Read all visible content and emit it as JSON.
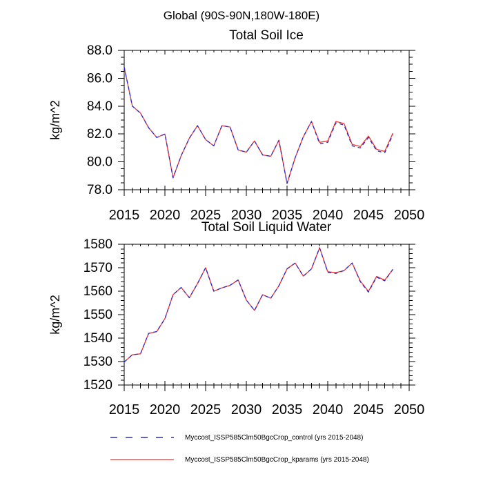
{
  "header": {
    "suptitle": "Global (90S-90N,180W-180E)"
  },
  "legend": {
    "entries": [
      {
        "label": "Myccost_ISSP585Clm50BgcCrop_control (yrs 2015-2048)",
        "color": "#2a2acc",
        "style": "dashed"
      },
      {
        "label": "Myccost_ISSP585Clm50BgcCrop_kparams (yrs 2015-2048)",
        "color": "#ee3333",
        "style": "solid"
      }
    ]
  },
  "chart_data": [
    {
      "type": "line",
      "title": "Total Soil Ice",
      "ylabel": "kg/m^2",
      "xlim": [
        2015,
        2050
      ],
      "ylim": [
        78,
        88
      ],
      "grid": false,
      "xtick_values": [
        2015,
        2020,
        2025,
        2030,
        2035,
        2040,
        2045,
        2050
      ],
      "xtick_labels": [
        "2015",
        "2020",
        "2025",
        "2030",
        "2035",
        "2040",
        "2045",
        "2050"
      ],
      "xtick_minor_step": 1,
      "ytick_values": [
        78,
        80,
        82,
        84,
        86,
        88
      ],
      "ytick_labels": [
        "78.0",
        "80.0",
        "82.0",
        "84.0",
        "86.0",
        "88.0"
      ],
      "ytick_minor_step": 0.5,
      "x": [
        2015,
        2016,
        2017,
        2018,
        2019,
        2020,
        2021,
        2022,
        2023,
        2024,
        2025,
        2026,
        2027,
        2028,
        2029,
        2030,
        2031,
        2032,
        2033,
        2034,
        2035,
        2036,
        2037,
        2038,
        2039,
        2040,
        2041,
        2042,
        2043,
        2044,
        2045,
        2046,
        2047,
        2048
      ],
      "series": [
        {
          "name": "Myccost_ISSP585Clm50BgcCrop_kparams (yrs 2015-2048)",
          "color": "#ee3333",
          "style": "solid",
          "values": [
            86.8,
            84.0,
            83.5,
            82.45,
            81.75,
            82.0,
            78.85,
            80.45,
            81.7,
            82.6,
            81.6,
            81.15,
            82.6,
            82.5,
            80.85,
            80.7,
            81.5,
            80.5,
            80.4,
            81.55,
            78.45,
            80.3,
            81.8,
            82.9,
            81.4,
            81.5,
            82.9,
            82.75,
            81.25,
            81.1,
            81.85,
            80.9,
            80.75,
            82.05
          ]
        },
        {
          "name": "Myccost_ISSP585Clm50BgcCrop_control (yrs 2015-2048)",
          "color": "#2a2acc",
          "style": "dashed",
          "values": [
            86.8,
            84.0,
            83.5,
            82.45,
            81.75,
            82.0,
            78.85,
            80.45,
            81.7,
            82.6,
            81.6,
            81.15,
            82.6,
            82.5,
            80.85,
            80.7,
            81.5,
            80.5,
            80.4,
            81.55,
            78.45,
            80.3,
            81.8,
            82.9,
            81.3,
            81.4,
            82.8,
            82.65,
            81.15,
            81.0,
            81.75,
            80.8,
            80.65,
            81.95
          ]
        }
      ]
    },
    {
      "type": "line",
      "title": "Total Soil Liquid Water",
      "ylabel": "kg/m^2",
      "xlim": [
        2015,
        2050
      ],
      "ylim": [
        1520,
        1580
      ],
      "grid": false,
      "xtick_values": [
        2015,
        2020,
        2025,
        2030,
        2035,
        2040,
        2045,
        2050
      ],
      "xtick_labels": [
        "2015",
        "2020",
        "2025",
        "2030",
        "2035",
        "2040",
        "2045",
        "2050"
      ],
      "xtick_minor_step": 1,
      "ytick_values": [
        1520,
        1530,
        1540,
        1550,
        1560,
        1570,
        1580
      ],
      "ytick_labels": [
        "1520",
        "1530",
        "1540",
        "1550",
        "1560",
        "1570",
        "1580"
      ],
      "ytick_minor_step": 2,
      "x": [
        2015,
        2016,
        2017,
        2018,
        2019,
        2020,
        2021,
        2022,
        2023,
        2024,
        2025,
        2026,
        2027,
        2028,
        2029,
        2030,
        2031,
        2032,
        2033,
        2034,
        2035,
        2036,
        2037,
        2038,
        2039,
        2040,
        2041,
        2042,
        2043,
        2044,
        2045,
        2046,
        2047,
        2048
      ],
      "series": [
        {
          "name": "Myccost_ISSP585Clm50BgcCrop_kparams (yrs 2015-2048)",
          "color": "#ee3333",
          "style": "solid",
          "values": [
            1529.8,
            1532.9,
            1533.3,
            1542.0,
            1542.8,
            1548.3,
            1558.5,
            1561.6,
            1557.2,
            1563.2,
            1570.0,
            1560.0,
            1561.4,
            1562.5,
            1564.8,
            1556.2,
            1551.8,
            1558.5,
            1557.0,
            1562.3,
            1569.5,
            1572.0,
            1566.4,
            1569.5,
            1578.5,
            1568.3,
            1567.9,
            1568.8,
            1572.0,
            1564.3,
            1559.9,
            1566.3,
            1564.7,
            1569.3
          ]
        },
        {
          "name": "Myccost_ISSP585Clm50BgcCrop_control (yrs 2015-2048)",
          "color": "#2a2acc",
          "style": "dashed",
          "values": [
            1529.8,
            1532.9,
            1533.3,
            1542.0,
            1542.8,
            1548.3,
            1558.5,
            1561.6,
            1557.2,
            1563.2,
            1570.0,
            1560.0,
            1561.4,
            1562.5,
            1564.8,
            1556.2,
            1551.8,
            1558.5,
            1557.0,
            1562.3,
            1569.5,
            1572.0,
            1566.4,
            1569.5,
            1578.5,
            1568.0,
            1567.6,
            1568.8,
            1572.0,
            1564.0,
            1559.6,
            1566.0,
            1564.4,
            1569.3
          ]
        }
      ]
    }
  ]
}
